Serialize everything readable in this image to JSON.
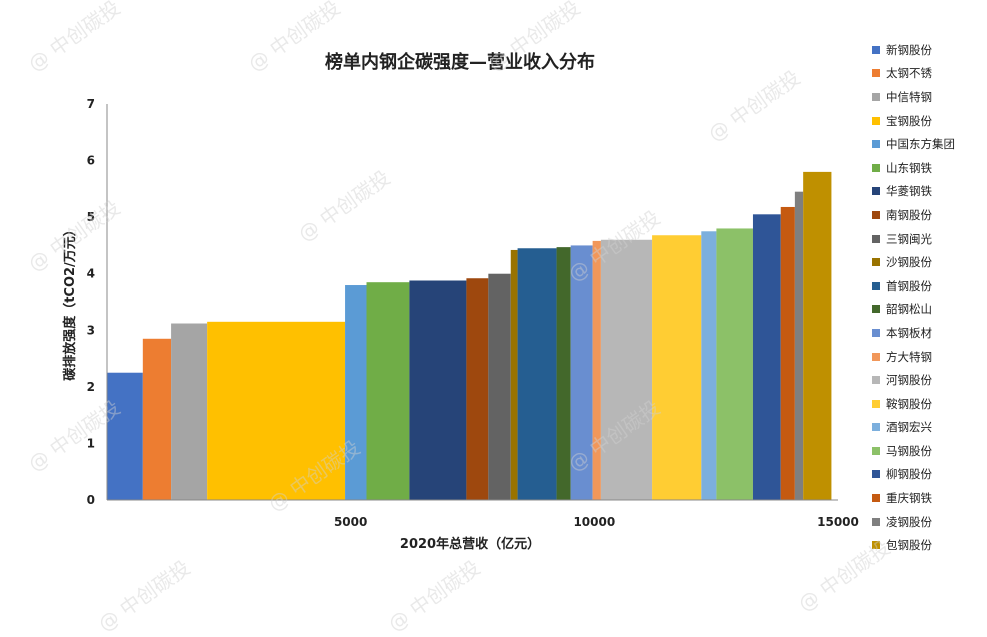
{
  "chart_data": {
    "type": "bar",
    "title": "榜单内钢企碳强度—营业收入分布",
    "xlabel": "2020年总营收（亿元）",
    "ylabel": "碳排放强度（tCO2/万元）",
    "xlim": [
      0,
      15000
    ],
    "ylim": [
      0,
      7
    ],
    "x_ticks": [
      5000,
      10000,
      15000
    ],
    "y_ticks": [
      0,
      1,
      2,
      3,
      4,
      5,
      6,
      7
    ],
    "legend_position": "right",
    "series": [
      {
        "name": "新钢股份",
        "revenue": 735,
        "intensity": 2.25,
        "color": "#4472C4"
      },
      {
        "name": "太钢不锈",
        "revenue": 580,
        "intensity": 2.85,
        "color": "#ED7D31"
      },
      {
        "name": "中信特钢",
        "revenue": 740,
        "intensity": 3.12,
        "color": "#A5A5A5"
      },
      {
        "name": "宝钢股份",
        "revenue": 2830,
        "intensity": 3.15,
        "color": "#FFC000"
      },
      {
        "name": "中国东方集团",
        "revenue": 440,
        "intensity": 3.8,
        "color": "#5B9BD5"
      },
      {
        "name": "山东钢铁",
        "revenue": 880,
        "intensity": 3.85,
        "color": "#70AD47"
      },
      {
        "name": "华菱钢铁",
        "revenue": 1170,
        "intensity": 3.88,
        "color": "#264478"
      },
      {
        "name": "南钢股份",
        "revenue": 450,
        "intensity": 3.92,
        "color": "#9E480E"
      },
      {
        "name": "三钢闽光",
        "revenue": 460,
        "intensity": 4.0,
        "color": "#636363"
      },
      {
        "name": "沙钢股份",
        "revenue": 140,
        "intensity": 4.42,
        "color": "#997300"
      },
      {
        "name": "首钢股份",
        "revenue": 800,
        "intensity": 4.45,
        "color": "#255E91"
      },
      {
        "name": "韶钢松山",
        "revenue": 290,
        "intensity": 4.47,
        "color": "#43682B"
      },
      {
        "name": "本钢板材",
        "revenue": 450,
        "intensity": 4.5,
        "color": "#698ED0"
      },
      {
        "name": "方大特钢",
        "revenue": 170,
        "intensity": 4.58,
        "color": "#F1975A"
      },
      {
        "name": "河钢股份",
        "revenue": 1050,
        "intensity": 4.6,
        "color": "#B7B7B7"
      },
      {
        "name": "鞍钢股份",
        "revenue": 1010,
        "intensity": 4.68,
        "color": "#FFCD33"
      },
      {
        "name": "酒钢宏兴",
        "revenue": 310,
        "intensity": 4.75,
        "color": "#7CAFDD"
      },
      {
        "name": "马钢股份",
        "revenue": 750,
        "intensity": 4.8,
        "color": "#8CC168"
      },
      {
        "name": "柳钢股份",
        "revenue": 570,
        "intensity": 5.05,
        "color": "#2F5597"
      },
      {
        "name": "重庆钢铁",
        "revenue": 290,
        "intensity": 5.18,
        "color": "#C55A11"
      },
      {
        "name": "凌钢股份",
        "revenue": 170,
        "intensity": 5.45,
        "color": "#7F7F7F"
      },
      {
        "name": "包钢股份",
        "revenue": 580,
        "intensity": 5.8,
        "color": "#BF9000"
      }
    ]
  },
  "watermark_text": "@ 中创碳投"
}
